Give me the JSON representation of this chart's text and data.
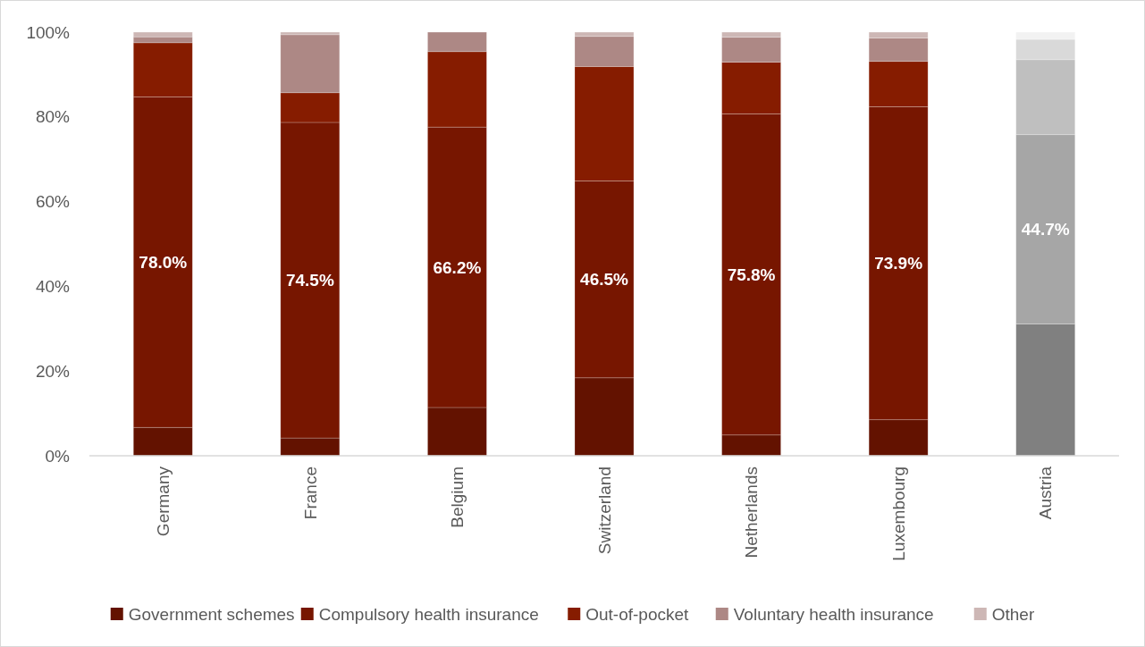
{
  "chart_data": {
    "type": "bar",
    "stacked": true,
    "categories": [
      "Germany",
      "France",
      "Belgium",
      "Switzerland",
      "Netherlands",
      "Luxembourg",
      "Austria"
    ],
    "series": [
      {
        "name": "Government schemes",
        "color": "#631200",
        "colors": [
          "#631200",
          "#631200",
          "#631200",
          "#631200",
          "#631200",
          "#631200",
          "#808080"
        ],
        "values": [
          6.7,
          4.2,
          11.4,
          18.4,
          4.9,
          8.5,
          31.1
        ]
      },
      {
        "name": "Compulsory health insurance",
        "color": "#771600",
        "colors": [
          "#771600",
          "#771600",
          "#771600",
          "#771600",
          "#771600",
          "#771600",
          "#a6a6a6"
        ],
        "values": [
          78.0,
          74.5,
          66.2,
          46.5,
          75.8,
          73.9,
          44.7
        ],
        "value_labels": [
          "78.0%",
          "74.5%",
          "66.2%",
          "46.5%",
          "75.8%",
          "73.9%",
          "44.7%"
        ]
      },
      {
        "name": "Out-of-pocket",
        "color": "#861c00",
        "colors": [
          "#861c00",
          "#861c00",
          "#861c00",
          "#861c00",
          "#861c00",
          "#861c00",
          "#bfbfbf"
        ],
        "values": [
          12.8,
          7.0,
          17.8,
          27.0,
          12.2,
          10.7,
          17.7
        ]
      },
      {
        "name": "Voluntary health insurance",
        "color": "#ad8885",
        "colors": [
          "#ad8885",
          "#ad8885",
          "#ad8885",
          "#ad8885",
          "#ad8885",
          "#ad8885",
          "#d9d9d9"
        ],
        "values": [
          1.4,
          13.7,
          4.6,
          7.1,
          5.9,
          5.5,
          4.8
        ]
      },
      {
        "name": "Other",
        "color": "#cdb7b5",
        "colors": [
          "#cdb7b5",
          "#cdb7b5",
          "#cdb7b5",
          "#cdb7b5",
          "#cdb7b5",
          "#cdb7b5",
          "#f2f2f2"
        ],
        "values": [
          1.1,
          0.6,
          0,
          1.0,
          1.2,
          1.4,
          1.7
        ]
      }
    ],
    "ylim": [
      0,
      100
    ],
    "yticks": [
      {
        "value": 0,
        "label": "0%"
      },
      {
        "value": 20,
        "label": "20%"
      },
      {
        "value": 40,
        "label": "40%"
      },
      {
        "value": 60,
        "label": "60%"
      },
      {
        "value": 80,
        "label": "80%"
      },
      {
        "value": 100,
        "label": "100%"
      }
    ],
    "grid": false,
    "legend": "bottom"
  }
}
